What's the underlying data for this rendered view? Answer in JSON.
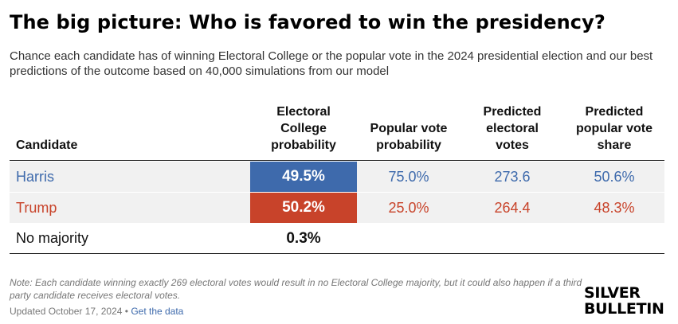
{
  "title": "The big picture: Who is favored to win the presidency?",
  "subtitle": "Chance each candidate has of winning Electoral College or the popular vote in the 2024 presidential election and our best predictions of the outcome based on 40,000 simulations from our model",
  "columns": {
    "candidate": "Candidate",
    "ec_prob": "Electoral College probability",
    "pop_prob": "Popular vote probability",
    "pred_ev": "Predicted electoral votes",
    "pred_share": "Predicted popular vote share"
  },
  "rows": [
    {
      "name": "Harris",
      "ec_prob": "49.5%",
      "pop_prob": "75.0%",
      "pred_ev": "273.6",
      "pred_share": "50.6%",
      "color": "#3e6aac"
    },
    {
      "name": "Trump",
      "ec_prob": "50.2%",
      "pop_prob": "25.0%",
      "pred_ev": "264.4",
      "pred_share": "48.3%",
      "color": "#c8432a"
    },
    {
      "name": "No majority",
      "ec_prob": "0.3%",
      "pop_prob": "",
      "pred_ev": "",
      "pred_share": ""
    }
  ],
  "note": "Note: Each candidate winning exactly 269 electoral votes would result in no Electoral College majority, but it could also happen if a third party candidate receives electoral votes.",
  "updated": "Updated October 17, 2024 • ",
  "get_data_link": "Get the data",
  "logo": {
    "line1": "SILVER",
    "line2": "BULLETIN"
  }
}
